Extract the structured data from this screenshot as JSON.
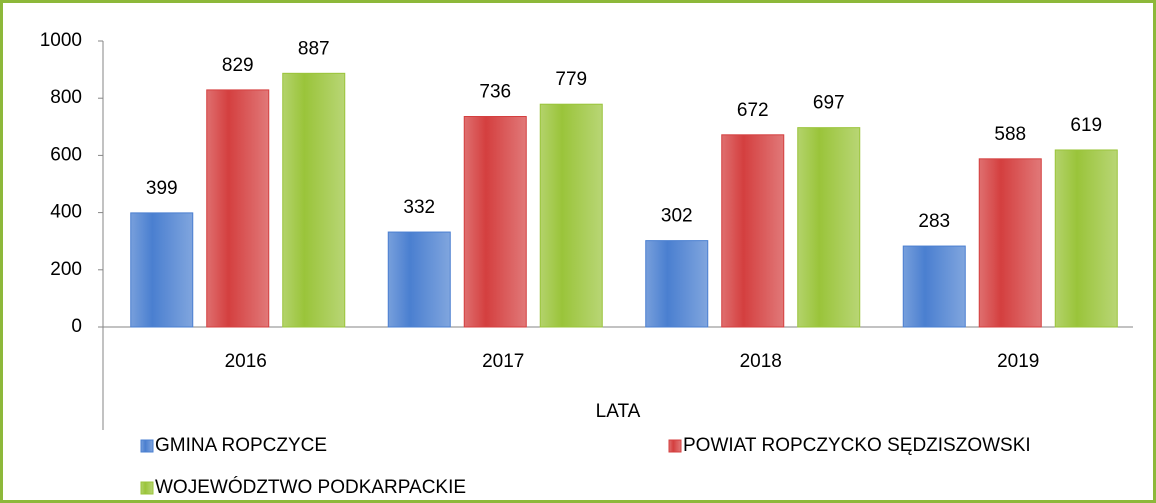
{
  "chart_data": {
    "type": "bar",
    "x_label": "LATA",
    "categories": [
      "2016",
      "2017",
      "2018",
      "2019"
    ],
    "series": [
      {
        "name": "GMINA ROPCZYCE",
        "color": "#4a7fd0",
        "values": [
          399,
          332,
          302,
          283
        ]
      },
      {
        "name": "POWIAT ROPCZYCKO SĘDZISZOWSKI",
        "color": "#d43f3f",
        "values": [
          829,
          736,
          672,
          588
        ]
      },
      {
        "name": "WOJEWÓDZTWO PODKARPACKIE",
        "color": "#9ac43a",
        "values": [
          887,
          779,
          697,
          619
        ]
      }
    ],
    "ylim": [
      0,
      1000
    ],
    "yticks": [
      0,
      200,
      400,
      600,
      800,
      1000
    ],
    "grid": false,
    "legend": "bottom"
  }
}
